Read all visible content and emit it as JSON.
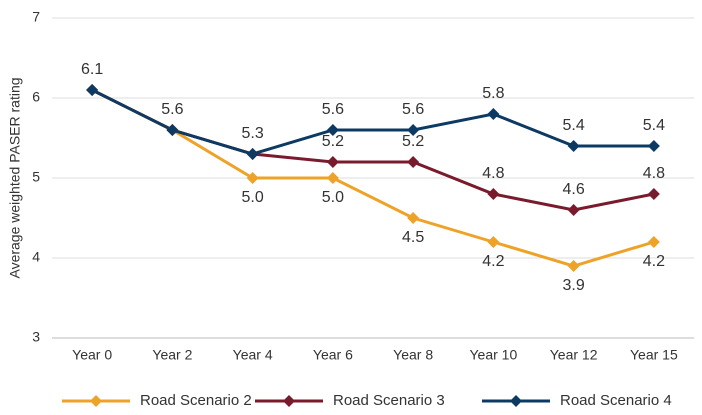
{
  "chart_data": {
    "type": "line",
    "y_label": "Average weighted PASER rating",
    "categories": [
      "Year 0",
      "Year 2",
      "Year 4",
      "Year 6",
      "Year 8",
      "Year 10",
      "Year 12",
      "Year 15"
    ],
    "series": [
      {
        "name": "Road Scenario 2",
        "color": "#eea328",
        "label_side": "below",
        "values": [
          6.1,
          5.6,
          5.0,
          5.0,
          4.5,
          4.2,
          3.9,
          4.2
        ],
        "value_labels": [
          null,
          null,
          "5.0",
          "5.0",
          "4.5",
          "4.2",
          "3.9",
          "4.2"
        ]
      },
      {
        "name": "Road Scenario 3",
        "color": "#7a1b2d",
        "label_side": "above",
        "values": [
          6.1,
          5.6,
          5.3,
          5.2,
          5.2,
          4.8,
          4.6,
          4.8
        ],
        "value_labels": [
          null,
          null,
          null,
          "5.2",
          "5.2",
          "4.8",
          "4.6",
          "4.8"
        ]
      },
      {
        "name": "Road Scenario 4",
        "color": "#0d3a63",
        "label_side": "above",
        "values": [
          6.1,
          5.6,
          5.3,
          5.6,
          5.6,
          5.8,
          5.4,
          5.4
        ],
        "value_labels": [
          "6.1",
          "5.6",
          "5.3",
          "5.6",
          "5.6",
          "5.8",
          "5.4",
          "5.4"
        ]
      }
    ],
    "ylim": [
      3,
      7
    ],
    "yticks": [
      3,
      4,
      5,
      6,
      7
    ],
    "grid": true,
    "legend": "bottom"
  }
}
